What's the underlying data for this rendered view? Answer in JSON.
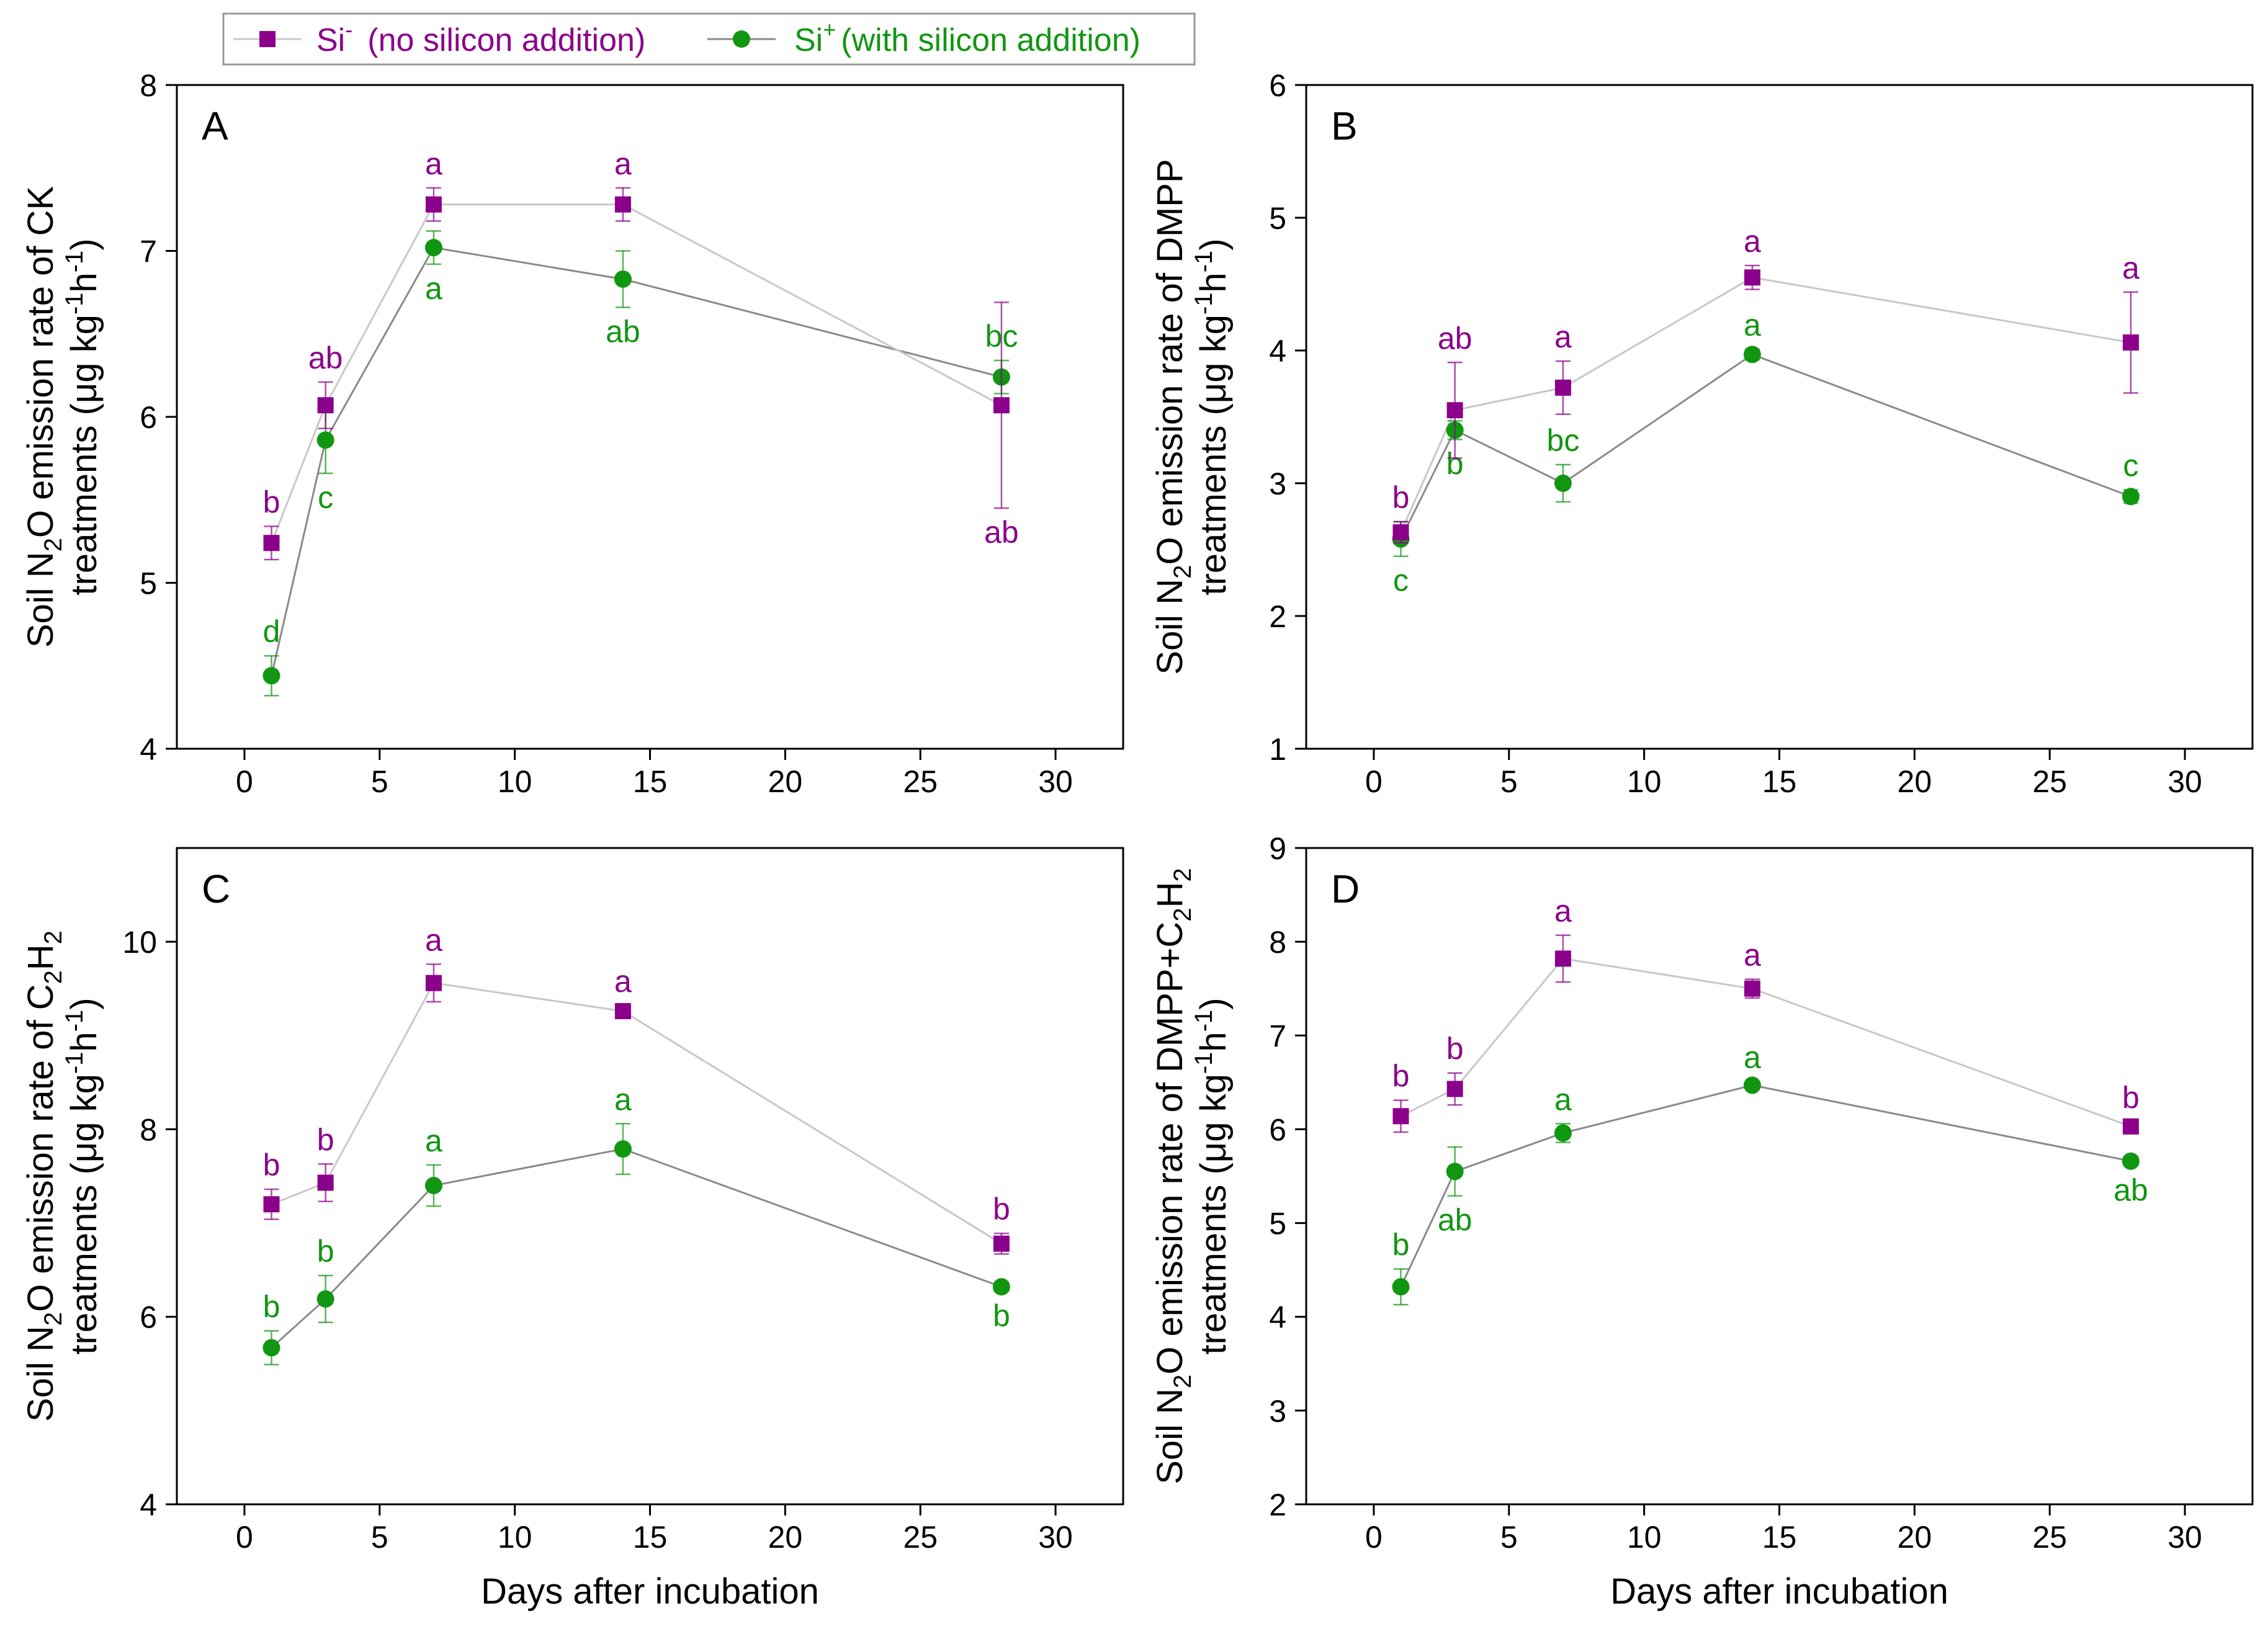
{
  "colors": {
    "si_minus": "#8B008B",
    "si_plus": "#119611",
    "line_minus": "#c8c8c8",
    "line_plus": "#8a8a8a"
  },
  "legend": {
    "si_minus_label": "Si",
    "si_minus_sup": "-",
    "si_minus_desc": "(no silicon addition)",
    "si_plus_label": "Si",
    "si_plus_sup": "+",
    "si_plus_desc": "(with silicon addition)"
  },
  "x_axis_label": "Days after incubation",
  "chart_data": [
    {
      "id": "A",
      "type": "line",
      "panel_label": "A",
      "ylabel_line1": {
        "pre": "Soil N",
        "sub": "2",
        "post": "O emission rate of CK"
      },
      "ylabel_line2": {
        "pre": "treatments (μg kg",
        "sup1": "-1",
        "mid": "h",
        "sup2": "-1",
        "post": ")"
      },
      "xlim": [
        -2.5,
        32.5
      ],
      "ylim": [
        4,
        8
      ],
      "xticks": [
        0,
        5,
        10,
        15,
        20,
        25,
        30
      ],
      "yticks": [
        4,
        5,
        6,
        7,
        8
      ],
      "x": [
        1,
        3,
        7,
        14,
        28
      ],
      "series": [
        {
          "name": "Si- (no silicon addition)",
          "values": [
            5.24,
            6.07,
            7.28,
            7.28,
            6.07
          ],
          "errors": [
            0.1,
            0.14,
            0.1,
            0.1,
            0.62
          ],
          "letters": [
            "b",
            "ab",
            "a",
            "a",
            "ab"
          ],
          "letter_pos": [
            "above",
            "above",
            "above",
            "above",
            "below"
          ]
        },
        {
          "name": "Si+ (with silicon addition)",
          "values": [
            4.44,
            5.86,
            7.02,
            6.83,
            6.24
          ],
          "errors": [
            0.12,
            0.2,
            0.1,
            0.17,
            0.1
          ],
          "letters": [
            "d",
            "c",
            "a",
            "ab",
            "bc"
          ],
          "letter_pos": [
            "above",
            "below",
            "below",
            "below",
            "above"
          ]
        }
      ]
    },
    {
      "id": "B",
      "type": "line",
      "panel_label": "B",
      "ylabel_line1": {
        "pre": "Soil N",
        "sub": "2",
        "post": "O emission rate of DMPP"
      },
      "ylabel_line2": {
        "pre": "treatments (μg kg",
        "sup1": "-1",
        "mid": "h",
        "sup2": "-1",
        "post": ")"
      },
      "xlim": [
        -2.5,
        32.5
      ],
      "ylim": [
        1,
        6
      ],
      "xticks": [
        0,
        5,
        10,
        15,
        20,
        25,
        30
      ],
      "yticks": [
        1,
        2,
        3,
        4,
        5,
        6
      ],
      "x": [
        1,
        3,
        7,
        14,
        28
      ],
      "series": [
        {
          "name": "Si- (no silicon addition)",
          "values": [
            2.63,
            3.55,
            3.72,
            4.55,
            4.06
          ],
          "errors": [
            0.08,
            0.36,
            0.2,
            0.09,
            0.38
          ],
          "letters": [
            "b",
            "ab",
            "a",
            "a",
            "a"
          ],
          "letter_pos": [
            "above",
            "above",
            "above",
            "above",
            "above"
          ]
        },
        {
          "name": "Si+ (with silicon addition)",
          "values": [
            2.58,
            3.4,
            3.0,
            3.97,
            2.9
          ],
          "errors": [
            0.13,
            0.07,
            0.14,
            0.04,
            0.05
          ],
          "letters": [
            "c",
            "b",
            "bc",
            "a",
            "c"
          ],
          "letter_pos": [
            "below",
            "below",
            "above",
            "above",
            "above"
          ]
        }
      ]
    },
    {
      "id": "C",
      "type": "line",
      "panel_label": "C",
      "ylabel_line1": {
        "pre": "Soil N",
        "sub": "2",
        "post": "O emission rate of C",
        "sub2": "2",
        "post2": "H",
        "sub3": "2"
      },
      "ylabel_line2": {
        "pre": "treatments (μg kg",
        "sup1": "-1",
        "mid": "h",
        "sup2": "-1",
        "post": ")"
      },
      "xlim": [
        -2.5,
        32.5
      ],
      "ylim": [
        4,
        11
      ],
      "xticks": [
        0,
        5,
        10,
        15,
        20,
        25,
        30
      ],
      "yticks": [
        4,
        6,
        8,
        10
      ],
      "x": [
        1,
        3,
        7,
        14,
        28
      ],
      "series": [
        {
          "name": "Si- (no silicon addition)",
          "values": [
            7.2,
            7.43,
            9.56,
            9.26,
            6.78
          ],
          "errors": [
            0.16,
            0.2,
            0.2,
            0.06,
            0.11
          ],
          "letters": [
            "b",
            "b",
            "a",
            "a",
            "b"
          ],
          "letter_pos": [
            "above",
            "above",
            "above",
            "above",
            "above"
          ]
        },
        {
          "name": "Si+ (with silicon addition)",
          "values": [
            5.67,
            6.19,
            7.4,
            7.79,
            6.32
          ],
          "errors": [
            0.18,
            0.25,
            0.22,
            0.27,
            0.05
          ],
          "letters": [
            "b",
            "b",
            "a",
            "a",
            "b"
          ],
          "letter_pos": [
            "above",
            "above",
            "above",
            "above",
            "below"
          ]
        }
      ]
    },
    {
      "id": "D",
      "type": "line",
      "panel_label": "D",
      "ylabel_line1": {
        "pre": "Soil N",
        "sub": "2",
        "post": "O emission rate of DMPP+C",
        "sub2": "2",
        "post2": "H",
        "sub3": "2"
      },
      "ylabel_line2": {
        "pre": "treatments (μg kg",
        "sup1": "-1",
        "mid": "h",
        "sup2": "-1",
        "post": ")"
      },
      "xlim": [
        -2.5,
        32.5
      ],
      "ylim": [
        2,
        9
      ],
      "xticks": [
        0,
        5,
        10,
        15,
        20,
        25,
        30
      ],
      "yticks": [
        2,
        3,
        4,
        5,
        6,
        7,
        8,
        9
      ],
      "x": [
        1,
        3,
        7,
        14,
        28
      ],
      "series": [
        {
          "name": "Si- (no silicon addition)",
          "values": [
            6.14,
            6.43,
            7.82,
            7.5,
            6.03
          ],
          "errors": [
            0.17,
            0.17,
            0.25,
            0.1,
            0.05
          ],
          "letters": [
            "b",
            "b",
            "a",
            "a",
            "b"
          ],
          "letter_pos": [
            "above",
            "above",
            "above",
            "above",
            "above"
          ]
        },
        {
          "name": "Si+ (with silicon addition)",
          "values": [
            4.32,
            5.55,
            5.96,
            6.47,
            5.66
          ],
          "errors": [
            0.19,
            0.26,
            0.1,
            0.04,
            0.05
          ],
          "letters": [
            "b",
            "ab",
            "a",
            "a",
            "ab"
          ],
          "letter_pos": [
            "above",
            "below",
            "above",
            "above",
            "below"
          ]
        }
      ]
    }
  ]
}
